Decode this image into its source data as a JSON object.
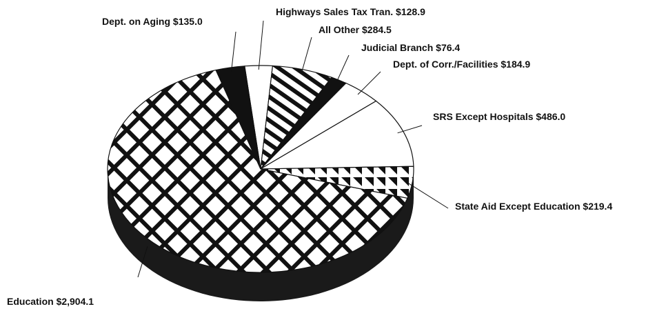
{
  "chart_data": {
    "type": "pie",
    "categories": [
      "Highways Sales Tax Tran.",
      "All Other",
      "Judicial Branch",
      "Dept. of Corr./Facilities",
      "SRS Except Hospitals",
      "State Aid Except Education",
      "Education",
      "Dept. on Aging"
    ],
    "values": [
      128.9,
      284.5,
      76.4,
      184.9,
      486.0,
      219.4,
      2904.1,
      135.0
    ],
    "value_labels": [
      "$128.9",
      "$284.5",
      "$76.4",
      "$184.9",
      "$486.0",
      "$219.4",
      "$2,904.1",
      "$135.0"
    ],
    "colors": [
      "#ffffff",
      "#ffffff",
      "#111111",
      "#ffffff",
      "#ffffff",
      "#ffffff",
      "#ffffff",
      "#111111"
    ],
    "patterns": [
      "none",
      "diagonal",
      "none",
      "none",
      "none",
      "triangles",
      "crosshatch",
      "none"
    ]
  }
}
